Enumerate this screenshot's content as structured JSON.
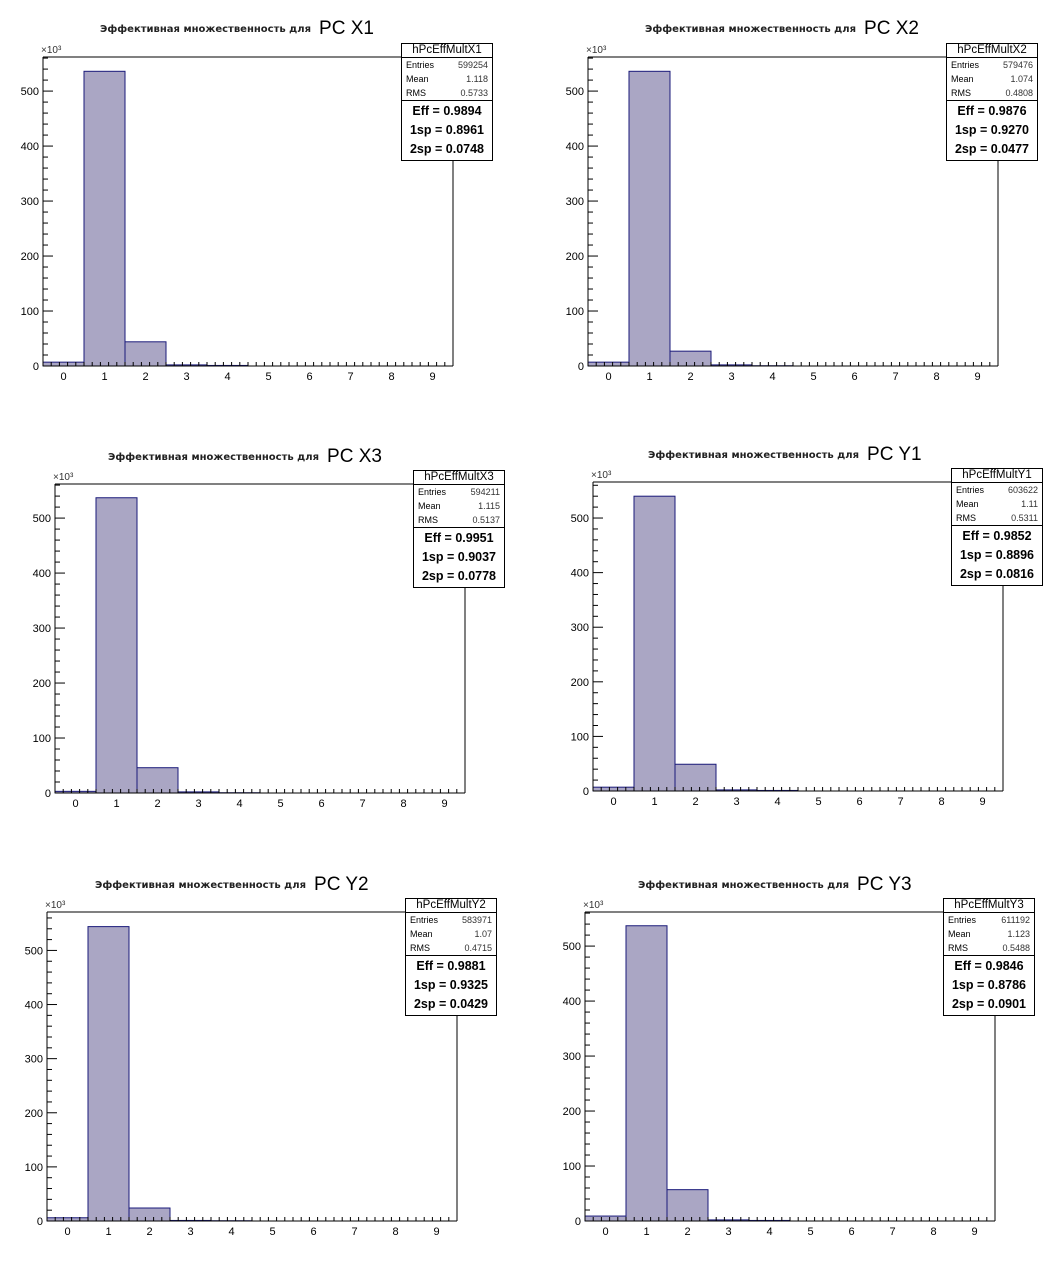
{
  "chart_data": [
    {
      "type": "bar",
      "title_prefix": "Эффективная множественность для",
      "title": "PC X1",
      "name": "hPcEffMultX1",
      "stats": {
        "Entries": "599254",
        "Mean": "1.118",
        "RMS": "0.5733"
      },
      "eff": [
        "Eff = 0.9894",
        "1sp = 0.8961",
        "2sp = 0.0748"
      ],
      "categories": [
        0,
        1,
        2,
        3,
        4,
        5,
        6,
        7,
        8,
        9
      ],
      "values": [
        7,
        536,
        44,
        2,
        1,
        0,
        0,
        0,
        0,
        0
      ],
      "y_multiplier": "×10³",
      "ylim": [
        0,
        562
      ],
      "xlim": [
        -0.5,
        9.5
      ],
      "yticks": [
        0,
        100,
        200,
        300,
        400,
        500
      ]
    },
    {
      "type": "bar",
      "title_prefix": "Эффективная множественность для",
      "title": "PC X2",
      "name": "hPcEffMultX2",
      "stats": {
        "Entries": "579476",
        "Mean": "1.074",
        "RMS": "0.4808"
      },
      "eff": [
        "Eff = 0.9876",
        "1sp = 0.9270",
        "2sp = 0.0477"
      ],
      "categories": [
        0,
        1,
        2,
        3,
        4,
        5,
        6,
        7,
        8,
        9
      ],
      "values": [
        7,
        536,
        27,
        2,
        0.5,
        0,
        0,
        0,
        0,
        0
      ],
      "y_multiplier": "×10³",
      "ylim": [
        0,
        562
      ],
      "xlim": [
        -0.5,
        9.5
      ],
      "yticks": [
        0,
        100,
        200,
        300,
        400,
        500
      ]
    },
    {
      "type": "bar",
      "title_prefix": "Эффективная множественность для",
      "title": "PC X3",
      "name": "hPcEffMultX3",
      "stats": {
        "Entries": "594211",
        "Mean": "1.115",
        "RMS": "0.5137"
      },
      "eff": [
        "Eff = 0.9951",
        "1sp = 0.9037",
        "2sp = 0.0778"
      ],
      "categories": [
        0,
        1,
        2,
        3,
        4,
        5,
        6,
        7,
        8,
        9
      ],
      "values": [
        3,
        537,
        46,
        2,
        0.5,
        0,
        0,
        0,
        0,
        0
      ],
      "y_multiplier": "×10³",
      "ylim": [
        0,
        562
      ],
      "xlim": [
        -0.5,
        9.5
      ],
      "yticks": [
        0,
        100,
        200,
        300,
        400,
        500
      ]
    },
    {
      "type": "bar",
      "title_prefix": "Эффективная множественность для",
      "title": "PC Y1",
      "name": "hPcEffMultY1",
      "stats": {
        "Entries": "603622",
        "Mean": "1.11",
        "RMS": "0.5311"
      },
      "eff": [
        "Eff = 0.9852",
        "1sp = 0.8896",
        "2sp = 0.0816"
      ],
      "categories": [
        0,
        1,
        2,
        3,
        4,
        5,
        6,
        7,
        8,
        9
      ],
      "values": [
        7,
        540,
        49,
        2,
        1,
        0,
        0,
        0,
        0,
        0
      ],
      "y_multiplier": "×10³",
      "ylim": [
        0,
        566
      ],
      "xlim": [
        -0.5,
        9.5
      ],
      "yticks": [
        0,
        100,
        200,
        300,
        400,
        500
      ]
    },
    {
      "type": "bar",
      "title_prefix": "Эффективная множественность для",
      "title": "PC Y2",
      "name": "hPcEffMultY2",
      "stats": {
        "Entries": "583971",
        "Mean": "1.07",
        "RMS": "0.4715"
      },
      "eff": [
        "Eff = 0.9881",
        "1sp = 0.9325",
        "2sp = 0.0429"
      ],
      "categories": [
        0,
        1,
        2,
        3,
        4,
        5,
        6,
        7,
        8,
        9
      ],
      "values": [
        6,
        544,
        24,
        1,
        0.5,
        0,
        0,
        0,
        0,
        0
      ],
      "y_multiplier": "×10³",
      "ylim": [
        0,
        571
      ],
      "xlim": [
        -0.5,
        9.5
      ],
      "yticks": [
        0,
        100,
        200,
        300,
        400,
        500
      ]
    },
    {
      "type": "bar",
      "title_prefix": "Эффективная множественность для",
      "title": "PC Y3",
      "name": "hPcEffMultY3",
      "stats": {
        "Entries": "611192",
        "Mean": "1.123",
        "RMS": "0.5488"
      },
      "eff": [
        "Eff = 0.9846",
        "1sp = 0.8786",
        "2sp = 0.0901"
      ],
      "categories": [
        0,
        1,
        2,
        3,
        4,
        5,
        6,
        7,
        8,
        9
      ],
      "values": [
        9,
        537,
        57,
        2,
        1,
        0,
        0,
        0,
        0,
        0
      ],
      "y_multiplier": "×10³",
      "ylim": [
        0,
        562
      ],
      "xlim": [
        -0.5,
        9.5
      ],
      "yticks": [
        0,
        100,
        200,
        300,
        400,
        500
      ]
    }
  ],
  "colors": {
    "fill": "#aaa6c4",
    "line": "#1a1a7a",
    "axis": "#000000"
  }
}
